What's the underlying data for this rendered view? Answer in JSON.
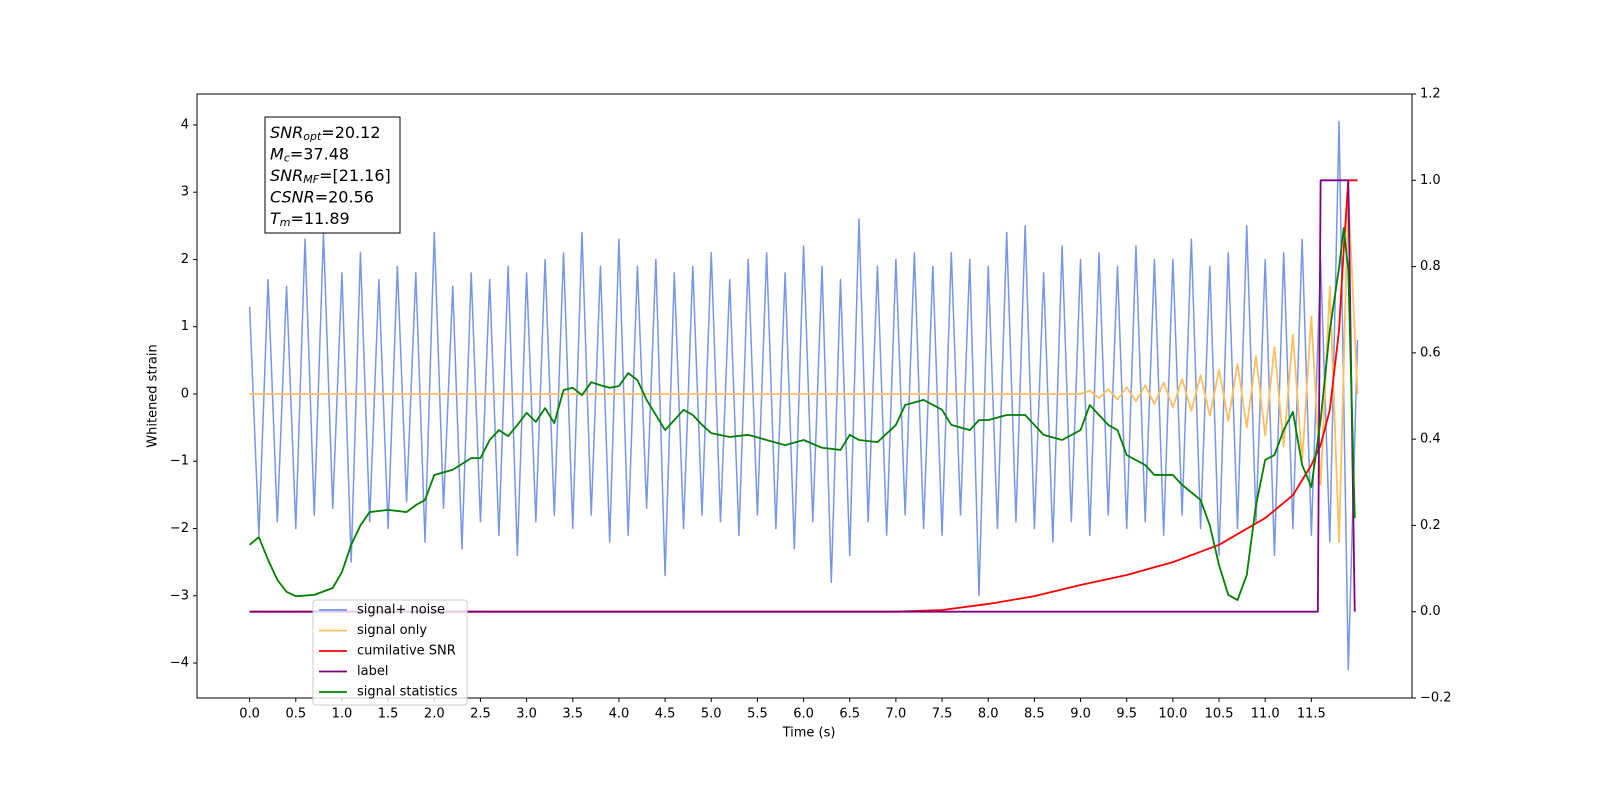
{
  "chart_data": {
    "type": "line",
    "xlabel": "Time (s)",
    "ylabel": "Whitened strain",
    "xlim": [
      -0.57,
      12.59
    ],
    "ylim": [
      -4.52,
      4.46
    ],
    "y2lim": [
      -0.2,
      1.2
    ],
    "xticks": [
      {
        "value": 0,
        "label": "0.0"
      },
      {
        "value": 0.5,
        "label": "0.5"
      },
      {
        "value": 1,
        "label": "1.0"
      },
      {
        "value": 1.5,
        "label": "1.5"
      },
      {
        "value": 2,
        "label": "2.0"
      },
      {
        "value": 2.5,
        "label": "2.5"
      },
      {
        "value": 3,
        "label": "3.0"
      },
      {
        "value": 3.5,
        "label": "3.5"
      },
      {
        "value": 4,
        "label": "4.0"
      },
      {
        "value": 4.5,
        "label": "4.5"
      },
      {
        "value": 5,
        "label": "5.0"
      },
      {
        "value": 5.5,
        "label": "5.5"
      },
      {
        "value": 6,
        "label": "6.0"
      },
      {
        "value": 6.5,
        "label": "6.5"
      },
      {
        "value": 7,
        "label": "7.0"
      },
      {
        "value": 7.5,
        "label": "7.5"
      },
      {
        "value": 8,
        "label": "8.0"
      },
      {
        "value": 8.5,
        "label": "8.5"
      },
      {
        "value": 9,
        "label": "9.0"
      },
      {
        "value": 9.5,
        "label": "9.5"
      },
      {
        "value": 10,
        "label": "10.0"
      },
      {
        "value": 10.5,
        "label": "10.5"
      },
      {
        "value": 11,
        "label": "11.0"
      },
      {
        "value": 11.5,
        "label": "11.5"
      }
    ],
    "yticks": [
      {
        "value": -4,
        "label": "−4"
      },
      {
        "value": -3,
        "label": "−3"
      },
      {
        "value": -2,
        "label": "−2"
      },
      {
        "value": -1,
        "label": "−1"
      },
      0,
      1,
      2,
      3,
      4
    ],
    "y2ticks": [
      {
        "value": -0.2,
        "label": "−0.2"
      },
      {
        "value": 0,
        "label": "0.0"
      },
      {
        "value": 0.2,
        "label": "0.2"
      },
      {
        "value": 0.4,
        "label": "0.4"
      },
      {
        "value": 0.6,
        "label": "0.6"
      },
      {
        "value": 0.8,
        "label": "0.8"
      },
      {
        "value": 1,
        "label": "1.0"
      },
      {
        "value": 1.2,
        "label": "1.2"
      }
    ],
    "legend": "lower left",
    "annotation": [
      {
        "text": "SNR",
        "sub": "opt",
        "rest": "=20.12"
      },
      {
        "text": "M",
        "sub": "c",
        "rest": "=37.48"
      },
      {
        "text": "SNR",
        "sub": "MF",
        "rest": "=[21.16]"
      },
      {
        "text": "CSNR",
        "rest": "=20.56"
      },
      {
        "text": "T",
        "sub": "m",
        "rest": "=11.89"
      }
    ],
    "series": [
      {
        "name": "signal+ noise",
        "color": "#7896e8",
        "x": [
          0,
          0.1,
          0.2,
          0.3,
          0.4,
          0.5,
          0.6,
          0.7,
          0.8,
          0.9,
          1,
          1.1,
          1.2,
          1.3,
          1.4,
          1.5,
          1.6,
          1.7,
          1.8,
          1.9,
          2,
          2.1,
          2.2,
          2.3,
          2.4,
          2.5,
          2.6,
          2.7,
          2.8,
          2.9,
          3,
          3.1,
          3.2,
          3.3,
          3.4,
          3.5,
          3.6,
          3.7,
          3.8,
          3.9,
          4,
          4.1,
          4.2,
          4.3,
          4.4,
          4.5,
          4.6,
          4.7,
          4.8,
          4.9,
          5,
          5.1,
          5.2,
          5.3,
          5.4,
          5.5,
          5.6,
          5.7,
          5.8,
          5.9,
          6,
          6.1,
          6.2,
          6.3,
          6.4,
          6.5,
          6.6,
          6.7,
          6.8,
          6.9,
          7,
          7.1,
          7.2,
          7.3,
          7.4,
          7.5,
          7.6,
          7.7,
          7.8,
          7.9,
          8,
          8.1,
          8.2,
          8.3,
          8.4,
          8.5,
          8.6,
          8.7,
          8.8,
          8.9,
          9,
          9.1,
          9.2,
          9.3,
          9.4,
          9.5,
          9.6,
          9.7,
          9.8,
          9.9,
          10,
          10.1,
          10.2,
          10.3,
          10.4,
          10.5,
          10.6,
          10.7,
          10.8,
          10.9,
          11,
          11.1,
          11.2,
          11.3,
          11.4,
          11.5,
          11.6,
          11.7,
          11.8,
          11.9,
          12
        ],
        "values": [
          1.3,
          -2.1,
          1.7,
          -1.9,
          1.6,
          -2.0,
          2.3,
          -1.8,
          2.4,
          -1.7,
          1.8,
          -2.5,
          2.1,
          -1.9,
          1.7,
          -2.0,
          1.9,
          -1.6,
          1.8,
          -2.2,
          2.4,
          -1.7,
          1.6,
          -2.3,
          1.8,
          -1.9,
          1.7,
          -2.1,
          1.9,
          -2.4,
          1.8,
          -1.9,
          2.0,
          -1.8,
          2.1,
          -2.0,
          2.4,
          -1.8,
          1.9,
          -2.2,
          2.3,
          -2.1,
          1.9,
          -1.7,
          2.0,
          -2.7,
          1.8,
          -2.0,
          1.9,
          -1.8,
          2.1,
          -1.9,
          1.7,
          -2.1,
          2.0,
          -1.8,
          2.1,
          -2.0,
          1.8,
          -2.3,
          2.2,
          -1.9,
          1.9,
          -2.8,
          1.7,
          -2.4,
          2.6,
          -1.9,
          1.9,
          -2.1,
          2.0,
          -1.8,
          2.1,
          -2.0,
          1.9,
          -2.1,
          2.1,
          -1.8,
          2.0,
          -3.0,
          1.9,
          -2.0,
          2.4,
          -1.9,
          2.5,
          -2.0,
          1.8,
          -2.2,
          2.2,
          -1.9,
          2.0,
          -2.1,
          2.1,
          -1.8,
          1.9,
          -2.0,
          2.2,
          -1.9,
          2.0,
          -2.1,
          2.0,
          -1.8,
          2.3,
          -2.0,
          1.9,
          -2.4,
          2.1,
          -2.0,
          2.5,
          -1.9,
          2.0,
          -2.4,
          2.1,
          -2.0,
          2.3,
          -2.1,
          2.0,
          -2.2,
          4.05,
          -4.1,
          0.8
        ]
      },
      {
        "name": "signal only",
        "color": "#ffbf60",
        "x": [
          0,
          9,
          9.1,
          9.2,
          9.3,
          9.4,
          9.5,
          9.6,
          9.7,
          9.8,
          9.9,
          10,
          10.1,
          10.2,
          10.3,
          10.4,
          10.5,
          10.6,
          10.7,
          10.8,
          10.9,
          11,
          11.1,
          11.2,
          11.3,
          11.4,
          11.5,
          11.6,
          11.7,
          11.8,
          11.9,
          12
        ],
        "values": [
          0,
          0,
          0.05,
          -0.06,
          0.07,
          -0.08,
          0.1,
          -0.11,
          0.13,
          -0.15,
          0.17,
          -0.2,
          0.22,
          -0.25,
          0.28,
          -0.32,
          0.36,
          -0.4,
          0.45,
          -0.5,
          0.56,
          -0.62,
          0.7,
          -0.78,
          0.88,
          -1.0,
          1.15,
          -1.35,
          1.6,
          -2.2,
          3.0,
          0
        ]
      },
      {
        "name": "cumilative SNR",
        "color": "#ff0000",
        "axis": "y2",
        "x": [
          0,
          7,
          7.5,
          8,
          8.5,
          9,
          9.5,
          10,
          10.5,
          11,
          11.3,
          11.5,
          11.6,
          11.7,
          11.8,
          11.85,
          11.9,
          12
        ],
        "values": [
          0,
          0,
          0.004,
          0.018,
          0.036,
          0.062,
          0.085,
          0.115,
          0.155,
          0.217,
          0.27,
          0.34,
          0.386,
          0.468,
          0.653,
          0.838,
          1.0,
          1.0
        ]
      },
      {
        "name": "label",
        "color": "#800080",
        "axis": "y2",
        "x": [
          0,
          11.57,
          11.6,
          11.9,
          11.97
        ],
        "values": [
          0,
          0,
          1,
          1,
          0
        ]
      },
      {
        "name": "signal statistics",
        "color": "#008000",
        "axis": "y2",
        "x": [
          0,
          0.1,
          0.2,
          0.3,
          0.4,
          0.5,
          0.7,
          0.9,
          1,
          1.1,
          1.2,
          1.3,
          1.5,
          1.7,
          1.8,
          1.9,
          2,
          2.2,
          2.4,
          2.5,
          2.6,
          2.7,
          2.8,
          2.9,
          3,
          3.1,
          3.2,
          3.3,
          3.4,
          3.5,
          3.6,
          3.7,
          3.8,
          3.9,
          4,
          4.1,
          4.2,
          4.3,
          4.4,
          4.5,
          4.6,
          4.7,
          4.8,
          4.9,
          5,
          5.2,
          5.4,
          5.6,
          5.8,
          6,
          6.2,
          6.4,
          6.5,
          6.6,
          6.8,
          7,
          7.1,
          7.3,
          7.5,
          7.6,
          7.8,
          7.9,
          8,
          8.2,
          8.4,
          8.6,
          8.8,
          9,
          9.1,
          9.2,
          9.3,
          9.4,
          9.5,
          9.7,
          9.8,
          10,
          10.1,
          10.3,
          10.4,
          10.5,
          10.6,
          10.7,
          10.8,
          10.9,
          11,
          11.1,
          11.2,
          11.3,
          11.4,
          11.5,
          11.6,
          11.7,
          11.8,
          11.85,
          11.9,
          11.97
        ],
        "values": [
          0.155,
          0.173,
          0.12,
          0.074,
          0.046,
          0.036,
          0.039,
          0.055,
          0.092,
          0.155,
          0.2,
          0.231,
          0.236,
          0.231,
          0.247,
          0.259,
          0.317,
          0.329,
          0.356,
          0.356,
          0.398,
          0.421,
          0.407,
          0.433,
          0.461,
          0.44,
          0.472,
          0.437,
          0.514,
          0.519,
          0.502,
          0.532,
          0.525,
          0.519,
          0.523,
          0.553,
          0.537,
          0.491,
          0.456,
          0.421,
          0.444,
          0.468,
          0.456,
          0.433,
          0.414,
          0.405,
          0.41,
          0.398,
          0.386,
          0.398,
          0.38,
          0.375,
          0.41,
          0.398,
          0.393,
          0.433,
          0.479,
          0.491,
          0.468,
          0.433,
          0.421,
          0.444,
          0.444,
          0.456,
          0.456,
          0.41,
          0.398,
          0.421,
          0.479,
          0.456,
          0.433,
          0.421,
          0.363,
          0.34,
          0.317,
          0.317,
          0.294,
          0.259,
          0.2,
          0.108,
          0.039,
          0.027,
          0.085,
          0.247,
          0.352,
          0.363,
          0.421,
          0.463,
          0.34,
          0.289,
          0.444,
          0.653,
          0.797,
          0.889,
          0.792,
          0.217
        ]
      }
    ]
  }
}
